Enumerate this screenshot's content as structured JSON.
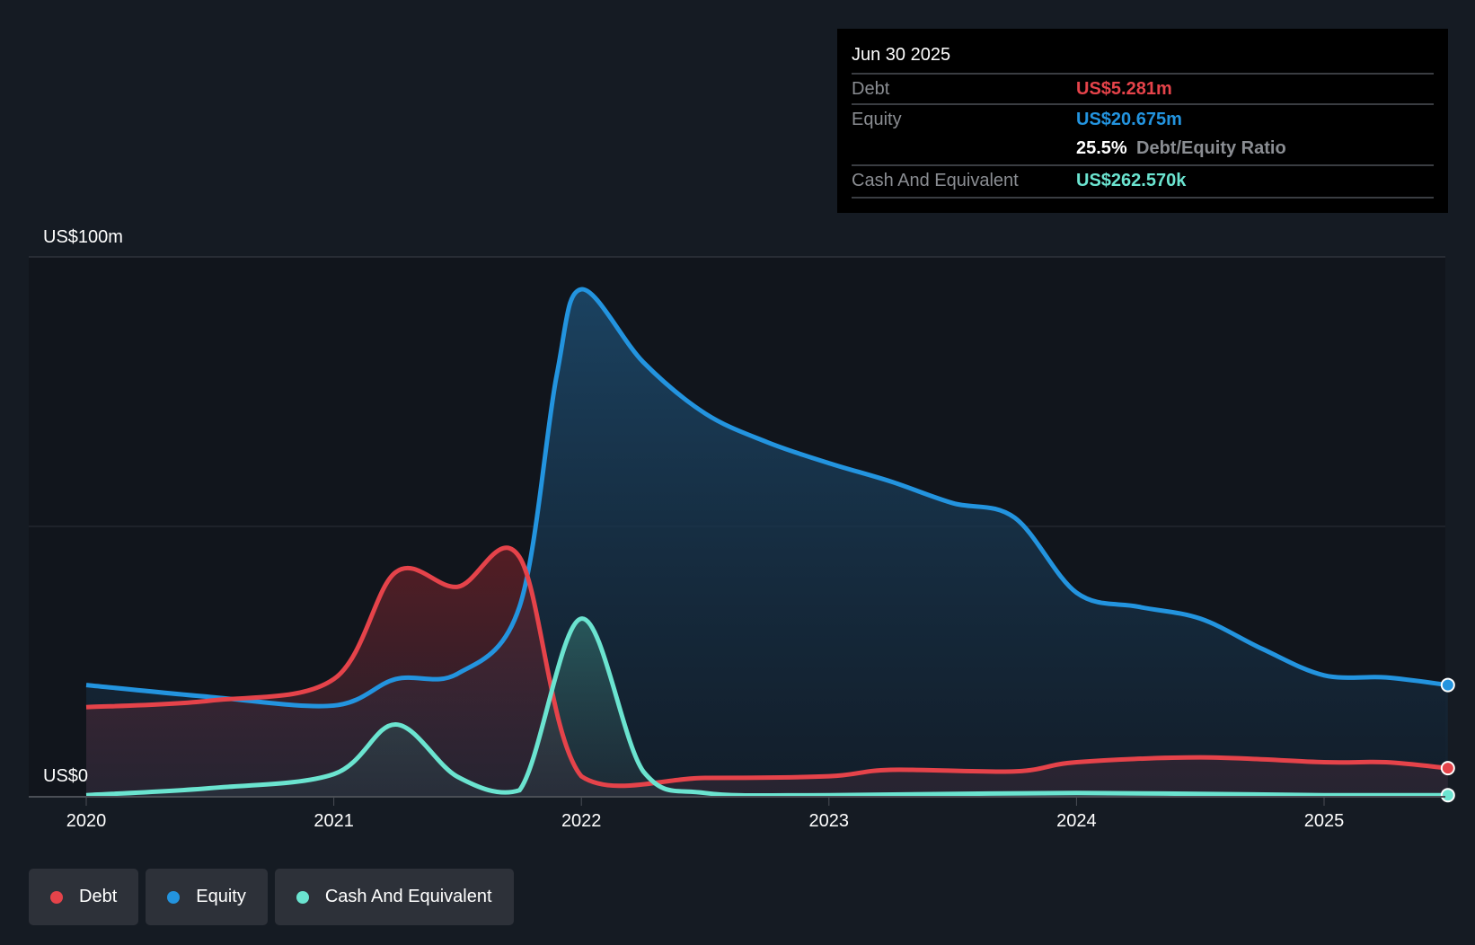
{
  "tooltip": {
    "date": "Jun 30 2025",
    "debt_label": "Debt",
    "debt_value": "US$5.281m",
    "equity_label": "Equity",
    "equity_value": "US$20.675m",
    "ratio_value": "25.5%",
    "ratio_label": "Debt/Equity Ratio",
    "cash_label": "Cash And Equivalent",
    "cash_value": "US$262.570k"
  },
  "legend": [
    {
      "label": "Debt",
      "color": "#e5434a"
    },
    {
      "label": "Equity",
      "color": "#2394df"
    },
    {
      "label": "Cash And Equivalent",
      "color": "#6be4d0"
    }
  ],
  "chart_data": {
    "type": "area",
    "y_labels": {
      "top": "US$100m",
      "bottom": "US$0"
    },
    "ylim": [
      0,
      100
    ],
    "xlim": [
      2019.9,
      2025.5
    ],
    "x_ticks": [
      "2020",
      "2021",
      "2022",
      "2023",
      "2024",
      "2025"
    ],
    "series": [
      {
        "name": "Equity",
        "color": "#2394df",
        "points": [
          [
            2020,
            20.7
          ],
          [
            2020.5,
            18.5
          ],
          [
            2021,
            16.9
          ],
          [
            2021.25,
            21.8
          ],
          [
            2021.5,
            22.8
          ],
          [
            2021.75,
            35.2
          ],
          [
            2021.9,
            78
          ],
          [
            2022,
            94
          ],
          [
            2022.25,
            80.5
          ],
          [
            2022.5,
            71
          ],
          [
            2022.75,
            65.7
          ],
          [
            2023,
            61.8
          ],
          [
            2023.25,
            58.4
          ],
          [
            2023.5,
            54.4
          ],
          [
            2023.75,
            51.7
          ],
          [
            2024,
            37.8
          ],
          [
            2024.25,
            35.2
          ],
          [
            2024.5,
            33
          ],
          [
            2024.75,
            27.4
          ],
          [
            2025,
            22.5
          ],
          [
            2025.25,
            22.1
          ],
          [
            2025.5,
            20.7
          ]
        ]
      },
      {
        "name": "Debt",
        "color": "#e5434a",
        "points": [
          [
            2020,
            16.6
          ],
          [
            2020.5,
            17.8
          ],
          [
            2021,
            21.8
          ],
          [
            2021.25,
            41.6
          ],
          [
            2021.5,
            38.9
          ],
          [
            2021.75,
            44.4
          ],
          [
            2022,
            3.8
          ],
          [
            2022.5,
            3.5
          ],
          [
            2023,
            3.8
          ],
          [
            2023.25,
            5
          ],
          [
            2023.75,
            4.7
          ],
          [
            2024,
            6.4
          ],
          [
            2024.5,
            7.3
          ],
          [
            2025,
            6.4
          ],
          [
            2025.25,
            6.4
          ],
          [
            2025.5,
            5.3
          ]
        ]
      },
      {
        "name": "Cash And Equivalent",
        "color": "#6be4d0",
        "points": [
          [
            2020,
            0.3
          ],
          [
            2020.5,
            1.6
          ],
          [
            2021,
            4.2
          ],
          [
            2021.25,
            13.4
          ],
          [
            2021.5,
            3.7
          ],
          [
            2021.75,
            1.2
          ],
          [
            2022,
            33
          ],
          [
            2022.25,
            4.7
          ],
          [
            2022.5,
            0.7
          ],
          [
            2023,
            0.3
          ],
          [
            2024,
            0.7
          ],
          [
            2025,
            0.3
          ],
          [
            2025.5,
            0.3
          ]
        ]
      }
    ]
  }
}
